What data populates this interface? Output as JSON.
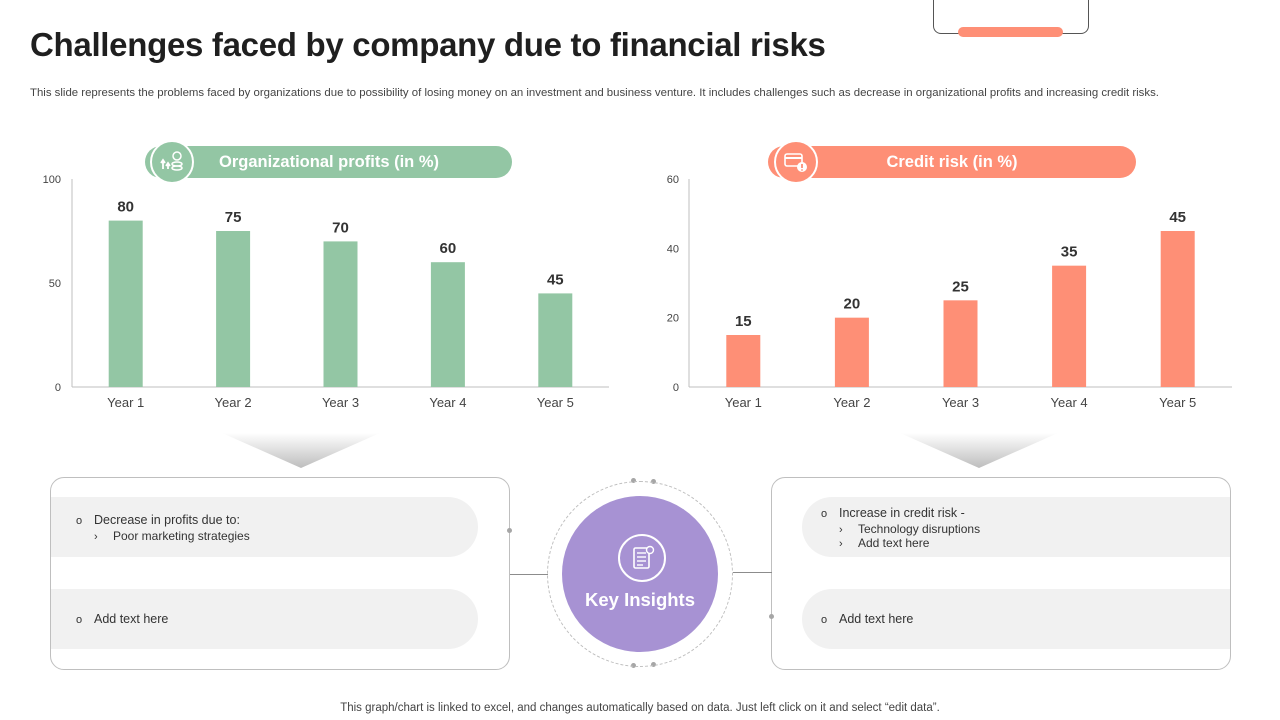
{
  "page": {
    "title": "Challenges faced by company due to financial risks",
    "subtitle": "This slide represents the problems faced by organizations due to possibility of losing money on an investment and business venture. It includes challenges such as decrease in organizational profits and increasing credit risks.",
    "footer": "This graph/chart is linked to excel,  and changes automatically based on data. Just left click on it and select “edit data”."
  },
  "colors": {
    "green": "#93c6a4",
    "orange": "#fe8f76",
    "purple": "#a792d3",
    "axis": "#bfbfbf"
  },
  "chart_data": [
    {
      "type": "bar",
      "title": "Organizational profits (in %)",
      "categories": [
        "Year 1",
        "Year 2",
        "Year 3",
        "Year 4",
        "Year 5"
      ],
      "values": [
        80,
        75,
        70,
        60,
        45
      ],
      "ylim": [
        0,
        100
      ],
      "yticks": [
        0,
        50,
        100
      ],
      "color": "#93c6a4",
      "icon": "profit-coins-icon"
    },
    {
      "type": "bar",
      "title": "Credit risk (in %)",
      "categories": [
        "Year 1",
        "Year 2",
        "Year 3",
        "Year 4",
        "Year 5"
      ],
      "values": [
        15,
        20,
        25,
        35,
        45
      ],
      "ylim": [
        0,
        60
      ],
      "yticks": [
        0,
        20,
        40,
        60
      ],
      "color": "#fe8f76",
      "icon": "credit-card-warning-icon"
    }
  ],
  "insights": {
    "center_label": "Key Insights",
    "center_icon": "document-report-icon",
    "left": {
      "row1_main": "Decrease in profits due to:",
      "row1_sub": "Poor marketing strategies",
      "row2_main": "Add text here"
    },
    "right": {
      "row1_main": "Increase in credit risk -",
      "row1_sub1": "Technology disruptions",
      "row1_sub2": "Add text here",
      "row2_main": "Add text here"
    },
    "bullet_symbol": "o",
    "sub_bullet_symbol": "›"
  }
}
